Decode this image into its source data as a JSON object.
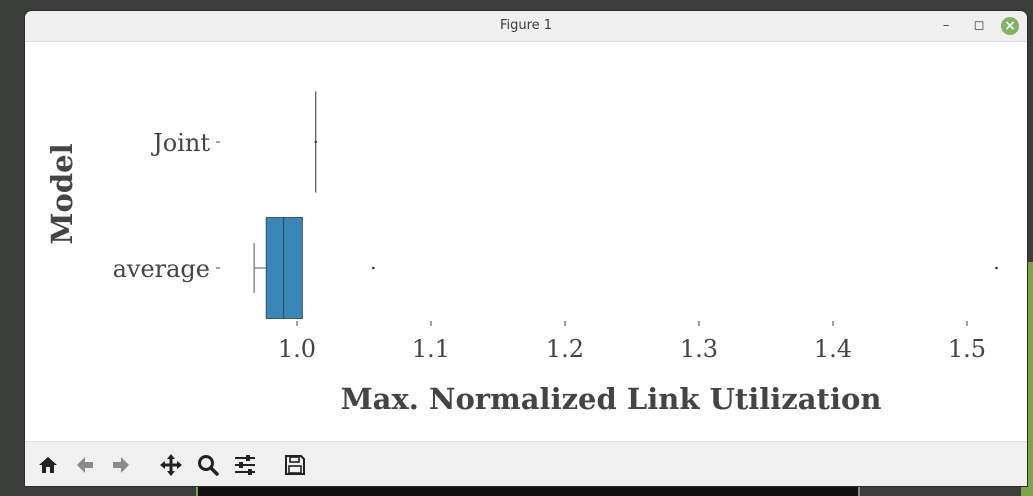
{
  "window": {
    "title": "Figure 1"
  },
  "toolbar": {
    "icons": [
      "home-icon",
      "back-icon",
      "forward-icon",
      "pan-icon",
      "zoom-icon",
      "configure-subplots-icon",
      "save-icon"
    ]
  },
  "colors": {
    "box_fill": "#3a86b8",
    "accent_close": "#7fb35f"
  },
  "chart_data": {
    "type": "box",
    "orientation": "horizontal",
    "xlabel": "Max. Normalized Link Utilization",
    "ylabel": "Model",
    "xlim": [
      0.96,
      1.525
    ],
    "xticks": [
      1.0,
      1.1,
      1.2,
      1.3,
      1.4,
      1.5
    ],
    "xtick_labels": [
      "1.0",
      "1.1",
      "1.2",
      "1.3",
      "1.4",
      "1.5"
    ],
    "categories": [
      "Joint",
      "average"
    ],
    "boxes": [
      {
        "name": "Joint",
        "whislo": 1.014,
        "q1": 1.014,
        "med": 1.014,
        "q3": 1.014,
        "whishi": 1.014,
        "fliers": []
      },
      {
        "name": "average",
        "whislo": 0.968,
        "q1": 0.977,
        "med": 0.99,
        "q3": 1.004,
        "whishi": 1.004,
        "fliers": [
          1.057,
          1.522
        ]
      }
    ],
    "grid": false,
    "legend": "none"
  }
}
